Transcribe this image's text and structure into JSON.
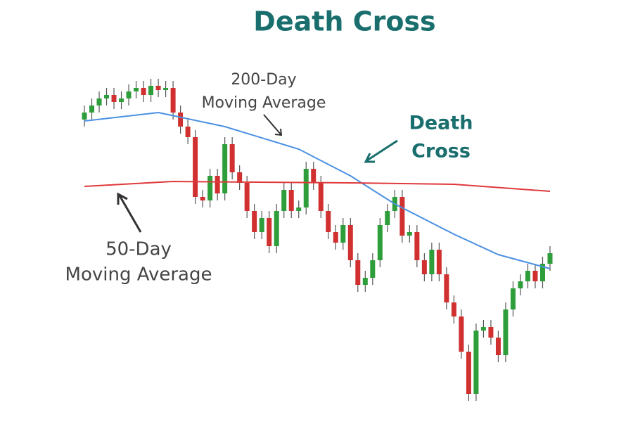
{
  "chart_data": {
    "type": "candlestick",
    "title": "Death Cross",
    "ylim": [
      0,
      100
    ],
    "up_color": "#2e9e3a",
    "down_color": "#d0302f",
    "open": [
      86,
      88,
      90,
      92,
      93,
      91,
      92,
      94,
      95,
      93,
      95.6,
      94.4,
      95,
      88,
      84,
      81,
      64,
      63,
      70,
      65,
      79,
      71,
      68,
      60,
      54,
      58,
      50,
      60,
      66,
      60,
      61,
      72,
      68,
      60,
      54,
      51,
      56,
      46,
      39,
      41,
      46,
      56,
      60,
      64,
      53,
      54,
      46,
      42,
      49,
      42,
      34,
      30,
      20,
      8,
      26,
      27,
      24,
      19,
      32,
      38,
      40,
      43,
      40,
      45
    ],
    "high": [
      90,
      92,
      94,
      95,
      95,
      94,
      96,
      97,
      97,
      97.6,
      97.6,
      97,
      97,
      90,
      86,
      83,
      66,
      72,
      72,
      81,
      81,
      73,
      70,
      62,
      60,
      60,
      62,
      68,
      68,
      63,
      74,
      74,
      70,
      62,
      56,
      58,
      58,
      48,
      43,
      48,
      58,
      62,
      66,
      66,
      56,
      56,
      48,
      51,
      51,
      44,
      36,
      32,
      22,
      28,
      29,
      29,
      26,
      34,
      40,
      42,
      45,
      45,
      47,
      50
    ],
    "low": [
      84,
      86,
      88,
      90,
      89,
      89,
      90,
      92,
      91,
      91,
      92.4,
      92.4,
      86,
      82,
      79,
      62,
      61,
      61,
      63,
      63,
      69,
      66,
      58,
      52,
      52,
      48,
      48,
      58,
      58,
      58,
      59,
      66,
      58,
      52,
      49,
      49,
      44,
      37,
      37,
      39,
      44,
      54,
      58,
      51,
      51,
      44,
      40,
      40,
      40,
      32,
      28,
      18,
      6,
      6,
      24,
      22,
      17,
      17,
      30,
      36,
      38,
      38,
      38,
      43
    ],
    "close": [
      88,
      90,
      92,
      93,
      91,
      92,
      94,
      95,
      93,
      95.6,
      94.4,
      95,
      88,
      84,
      81,
      64,
      63,
      70,
      65,
      79,
      71,
      68,
      60,
      54,
      58,
      50,
      60,
      66,
      60,
      61,
      72,
      68,
      60,
      54,
      51,
      56,
      46,
      39,
      41,
      46,
      56,
      60,
      64,
      53,
      54,
      46,
      42,
      49,
      42,
      34,
      30,
      20,
      8,
      26,
      27,
      24,
      19,
      32,
      38,
      40,
      43,
      40,
      45,
      48
    ],
    "series": [
      {
        "name": "200-Day Moving Average",
        "color": "#4a90e2",
        "x": [
          0,
          10,
          19,
          29,
          36,
          42,
          50,
          56,
          63
        ],
        "values": [
          85.6,
          88,
          84,
          77.6,
          70,
          62,
          53.4,
          47.6,
          43.6
        ]
      },
      {
        "name": "50-Day Moving Average",
        "color": "#e0393b",
        "x": [
          0,
          12,
          36,
          50,
          63
        ],
        "values": [
          67,
          68.4,
          68,
          67.6,
          65.6
        ]
      }
    ],
    "annotations": [
      [
        "200-Day",
        "Moving Average"
      ],
      [
        "Death",
        "Cross"
      ],
      [
        "50-Day",
        "Moving Average"
      ]
    ]
  }
}
